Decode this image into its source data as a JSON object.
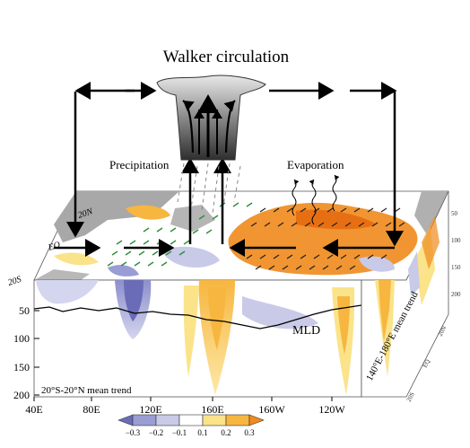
{
  "title": "Walker circulation",
  "labels": {
    "precipitation": "Precipitation",
    "evaporation": "Evaporation",
    "mld": "MLD",
    "front_panel": "20°S-20°N mean trend",
    "side_panel": "140°E-180°E mean trend"
  },
  "lat_labels": [
    "20N",
    "EQ",
    "20S"
  ],
  "depth_labels": [
    "50",
    "100",
    "150",
    "200"
  ],
  "lon_labels": [
    "40E",
    "80E",
    "120E",
    "160E",
    "160W",
    "120W"
  ],
  "side_ticks": [
    "50",
    "100",
    "150",
    "200"
  ],
  "side_lat_labels": [
    "20S",
    "EQ",
    "20N"
  ],
  "colorbar": {
    "ticks": [
      "−0.3",
      "−0.2",
      "−0.1",
      "0.1",
      "0.2",
      "0.3"
    ],
    "colors": [
      "#6b6cb8",
      "#9a9dd4",
      "#c8cae8",
      "#ffffff",
      "#fbe38a",
      "#f7b640",
      "#f08a1c"
    ]
  },
  "colors": {
    "warm": "#f08a1c",
    "cool": "#8c8fcc",
    "land": "#a8a8a8",
    "vector_green": "#2e8b3a",
    "vector_black": "#202020"
  }
}
